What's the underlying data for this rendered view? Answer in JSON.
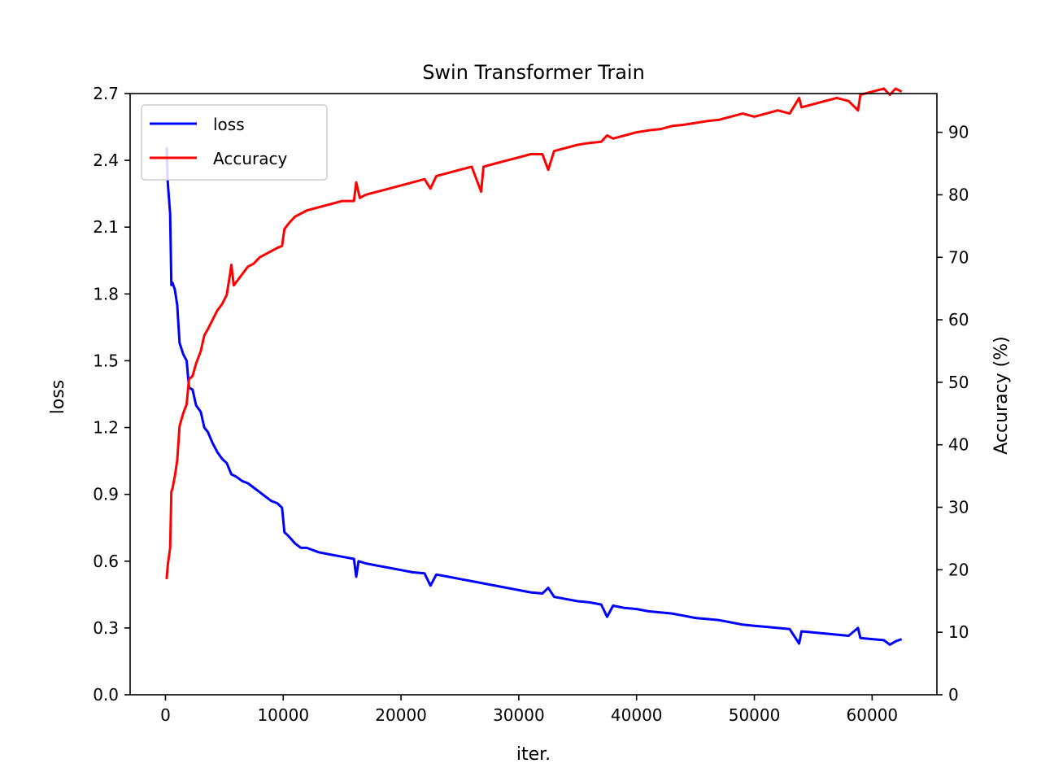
{
  "chart_data": {
    "type": "line",
    "title": "Swin Transformer Train",
    "xlabel": "iter.",
    "ylabel_left": "loss",
    "ylabel_right": "Accuracy (%)",
    "xlim": [
      -3000,
      65500
    ],
    "ylim_left": [
      0.0,
      2.7
    ],
    "ylim_right": [
      0,
      96.2
    ],
    "x_ticks": [
      0,
      10000,
      20000,
      30000,
      40000,
      50000,
      60000
    ],
    "y_left_ticks": [
      "0.0",
      "0.3",
      "0.6",
      "0.9",
      "1.2",
      "1.5",
      "1.8",
      "2.1",
      "2.4",
      "2.7"
    ],
    "y_right_ticks": [
      0,
      10,
      20,
      30,
      40,
      50,
      60,
      70,
      80,
      90
    ],
    "grid": false,
    "legend_position": "top-left",
    "colors": {
      "loss": "#0000ff",
      "accuracy": "#ff0000"
    },
    "series": [
      {
        "name": "loss",
        "axis": "left",
        "x": [
          100,
          200,
          400,
          500,
          600,
          800,
          1000,
          1200,
          1500,
          1800,
          2000,
          2300,
          2600,
          3000,
          3300,
          3600,
          4000,
          4400,
          4800,
          5200,
          5600,
          6000,
          6500,
          7000,
          7500,
          8000,
          8500,
          9000,
          9500,
          9900,
          10100,
          10500,
          11000,
          11500,
          12000,
          13000,
          14000,
          15000,
          16000,
          16200,
          16400,
          17000,
          18000,
          19000,
          20000,
          21000,
          22000,
          22500,
          23000,
          24000,
          25000,
          26000,
          27000,
          28000,
          29000,
          30000,
          31000,
          32000,
          32500,
          33000,
          34000,
          35000,
          36000,
          37000,
          37500,
          38000,
          39000,
          40000,
          41000,
          42000,
          43000,
          44000,
          45000,
          46000,
          47000,
          48000,
          49000,
          50000,
          51000,
          52000,
          53000,
          53800,
          54000,
          55000,
          56000,
          57000,
          58000,
          58800,
          59000,
          60000,
          61000,
          61500,
          62000,
          62500
        ],
        "y": [
          2.46,
          2.3,
          2.16,
          1.84,
          1.85,
          1.82,
          1.75,
          1.58,
          1.53,
          1.5,
          1.38,
          1.37,
          1.3,
          1.27,
          1.2,
          1.18,
          1.13,
          1.09,
          1.06,
          1.04,
          0.99,
          0.98,
          0.96,
          0.95,
          0.93,
          0.91,
          0.89,
          0.87,
          0.86,
          0.84,
          0.73,
          0.71,
          0.68,
          0.66,
          0.66,
          0.64,
          0.63,
          0.62,
          0.61,
          0.53,
          0.6,
          0.59,
          0.58,
          0.57,
          0.56,
          0.55,
          0.545,
          0.49,
          0.54,
          0.53,
          0.52,
          0.51,
          0.5,
          0.49,
          0.48,
          0.47,
          0.46,
          0.455,
          0.48,
          0.44,
          0.43,
          0.42,
          0.415,
          0.405,
          0.35,
          0.4,
          0.39,
          0.385,
          0.375,
          0.37,
          0.365,
          0.355,
          0.345,
          0.34,
          0.335,
          0.325,
          0.315,
          0.31,
          0.305,
          0.3,
          0.295,
          0.23,
          0.285,
          0.28,
          0.275,
          0.27,
          0.265,
          0.3,
          0.255,
          0.25,
          0.245,
          0.225,
          0.24,
          0.25
        ]
      },
      {
        "name": "Accuracy",
        "axis": "right",
        "x": [
          100,
          200,
          400,
          500,
          600,
          800,
          1000,
          1200,
          1500,
          1800,
          2000,
          2300,
          2600,
          3000,
          3300,
          3600,
          4000,
          4400,
          4800,
          5200,
          5500,
          5600,
          5800,
          6200,
          6600,
          7000,
          7500,
          8000,
          8500,
          9000,
          9500,
          9900,
          10100,
          10500,
          11000,
          11500,
          12000,
          13000,
          14000,
          15000,
          16000,
          16200,
          16500,
          17000,
          18000,
          19000,
          20000,
          21000,
          22000,
          22500,
          23000,
          24000,
          25000,
          26000,
          26800,
          27000,
          28000,
          29000,
          30000,
          31000,
          32000,
          32500,
          33000,
          34000,
          35000,
          36000,
          37000,
          37500,
          38000,
          39000,
          40000,
          41000,
          42000,
          43000,
          44000,
          45000,
          46000,
          47000,
          48000,
          49000,
          50000,
          51000,
          52000,
          53000,
          53800,
          54000,
          55000,
          56000,
          57000,
          58000,
          58800,
          59000,
          60000,
          61000,
          61500,
          62000,
          62500
        ],
        "y": [
          18.5,
          20.8,
          23.5,
          32.5,
          33.0,
          35.0,
          37.5,
          43.0,
          45.0,
          46.5,
          50.5,
          51.0,
          53.0,
          55.0,
          57.5,
          58.5,
          60.0,
          61.5,
          62.5,
          64.0,
          67.5,
          68.8,
          65.5,
          66.5,
          67.5,
          68.5,
          69.0,
          70.0,
          70.5,
          71.0,
          71.5,
          71.8,
          74.5,
          75.5,
          76.5,
          77.0,
          77.5,
          78.0,
          78.5,
          79.0,
          79.0,
          82.0,
          79.5,
          80.0,
          80.5,
          81.0,
          81.5,
          82.0,
          82.5,
          81.0,
          83.0,
          83.5,
          84.0,
          84.5,
          80.5,
          84.5,
          85.0,
          85.5,
          86.0,
          86.5,
          86.5,
          84.0,
          87.0,
          87.5,
          88.0,
          88.3,
          88.5,
          89.5,
          89.0,
          89.5,
          90.0,
          90.3,
          90.5,
          91.0,
          91.2,
          91.5,
          91.8,
          92.0,
          92.5,
          93.0,
          92.5,
          93.0,
          93.5,
          93.0,
          95.5,
          94.0,
          94.5,
          95.0,
          95.5,
          95.0,
          93.5,
          96.0,
          96.5,
          97.0,
          96.0,
          97.0,
          96.5
        ]
      }
    ]
  }
}
